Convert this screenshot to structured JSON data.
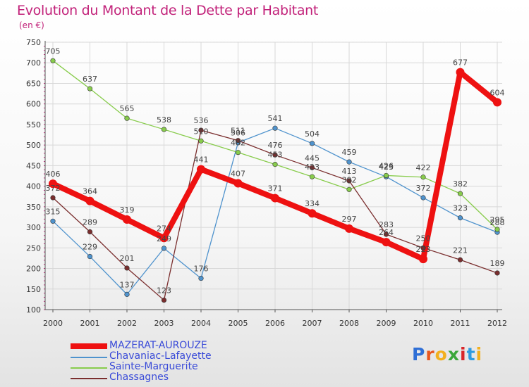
{
  "header": {
    "title": "Evolution du Montant de la Dette par Habitant",
    "unit": "(en €)"
  },
  "logo": {
    "text": "Proxiti",
    "letter_colors": [
      "#2f6fd6",
      "#e8571f",
      "#f2b01e",
      "#3aa63a",
      "#d9262a",
      "#2f9be0",
      "#f2b01e"
    ]
  },
  "colors": {
    "axis": "#555555",
    "grid": "#d8d8d8",
    "tick_label": "#333333",
    "data_label": "#444444"
  },
  "chart_data": {
    "type": "line",
    "title": "Evolution du Montant de la Dette par Habitant",
    "subtitle": "(en €)",
    "x": [
      "2000",
      "2001",
      "2002",
      "2003",
      "2004",
      "2005",
      "2006",
      "2007",
      "2008",
      "2009",
      "2010",
      "2011",
      "2012"
    ],
    "ylim": [
      100,
      750
    ],
    "yticks": [
      100,
      150,
      200,
      250,
      300,
      350,
      400,
      450,
      500,
      550,
      600,
      650,
      700,
      750
    ],
    "grid": true,
    "legend_position": "bottom-left",
    "series": [
      {
        "name": "MAZERAT-AUROUZE",
        "color": "#ee1111",
        "values": [
          406,
          364,
          319,
          274,
          441,
          407,
          371,
          334,
          297,
          264,
          223,
          677,
          604
        ]
      },
      {
        "name": "Chavaniac-Lafayette",
        "color": "#4f93cd",
        "values": [
          315,
          229,
          137,
          249,
          176,
          506,
          541,
          504,
          459,
          423,
          372,
          323,
          288
        ]
      },
      {
        "name": "Sainte-Marguerite",
        "color": "#88cc4c",
        "values": [
          705,
          637,
          565,
          538,
          510,
          482,
          453,
          423,
          392,
          426,
          422,
          382,
          295
        ]
      },
      {
        "name": "Chassagnes",
        "color": "#7a2e2e",
        "values": [
          372,
          289,
          201,
          123,
          536,
          511,
          476,
          445,
          413,
          283,
          250,
          221,
          189
        ]
      }
    ]
  }
}
